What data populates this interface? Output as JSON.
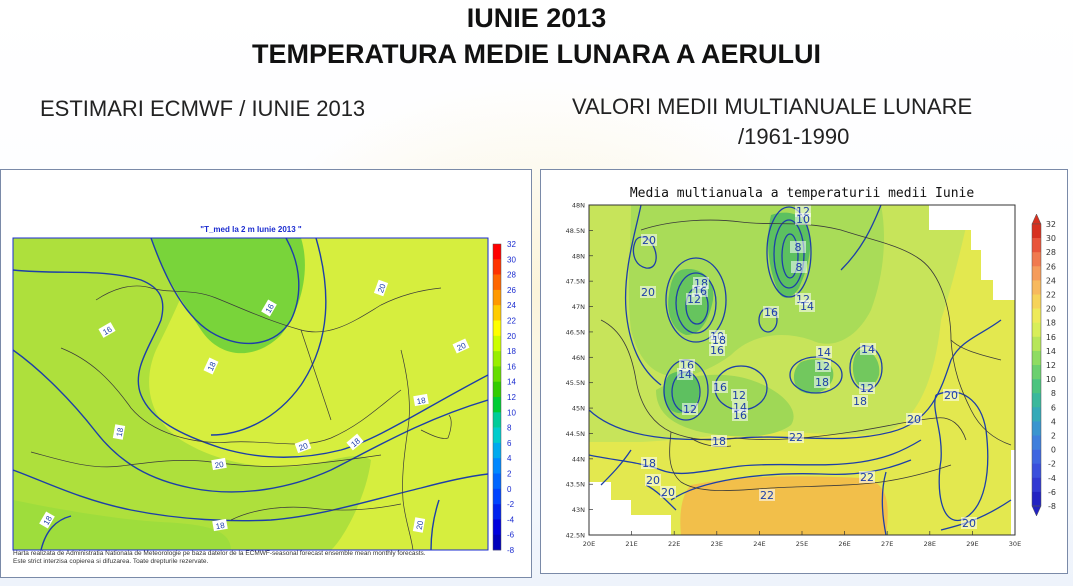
{
  "header": {
    "title_line1": "IUNIE 2013",
    "title_line2": "TEMPERATURA MEDIE LUNARA A AERULUI",
    "left_subtitle": "ESTIMARI ECMWF / IUNIE 2013",
    "right_subtitle_line1": "VALORI MEDII MULTIANUALE LUNARE",
    "right_subtitle_line2": "/1961-1990"
  },
  "left_map": {
    "title": "\"T_med la 2 m Iunie 2013 \"",
    "footnote_line1": "Harta realizata de Administratia Nationala de Meteorologie pe baza datelor de la ECMWF-seasonal forecast ensemble mean monthly forecasts.",
    "footnote_line2": "Este strict interzisa copierea si difuzarea. Toate drepturile rezervate.",
    "contour_labels": [
      "16",
      "18",
      "18",
      "20",
      "18",
      "18",
      "16",
      "20",
      "20",
      "18",
      "20",
      "18",
      "20"
    ],
    "colorbar": {
      "labels": [
        "32",
        "30",
        "28",
        "26",
        "24",
        "22",
        "20",
        "18",
        "16",
        "14",
        "12",
        "10",
        "8",
        "6",
        "4",
        "2",
        "0",
        "-2",
        "-4",
        "-6",
        "-8"
      ],
      "colors": [
        "#ff0000",
        "#ff3300",
        "#ff6600",
        "#ff9900",
        "#ffcc00",
        "#ffff00",
        "#ccff00",
        "#99ee00",
        "#66dd00",
        "#33cc00",
        "#00cc33",
        "#00cc99",
        "#00cccc",
        "#00aaee",
        "#0088ff",
        "#0066ff",
        "#0044ff",
        "#0022ee",
        "#0000dd",
        "#0000bb"
      ]
    }
  },
  "right_map": {
    "title": "Media multianuala a temperaturii medii Iunie",
    "lat_labels": [
      "48N",
      "48.5N",
      "48N",
      "47.5N",
      "47N",
      "46.5N",
      "46N",
      "45.5N",
      "45N",
      "44.5N",
      "44N",
      "43.5N",
      "43N",
      "42.5N"
    ],
    "lon_labels": [
      "20E",
      "21E",
      "22E",
      "23E",
      "24E",
      "25E",
      "26E",
      "27E",
      "28E",
      "29E",
      "30E"
    ],
    "contour_labels": [
      "12",
      "10",
      "8",
      "8",
      "12",
      "14",
      "20",
      "18",
      "16",
      "12",
      "10",
      "16",
      "20",
      "18",
      "16",
      "14",
      "12",
      "16",
      "14",
      "12",
      "18",
      "14",
      "12",
      "18",
      "16",
      "12",
      "14",
      "16",
      "18",
      "22",
      "20",
      "20",
      "20",
      "18",
      "20",
      "22",
      "22",
      "20"
    ],
    "colorbar": {
      "labels": [
        "32",
        "30",
        "28",
        "26",
        "24",
        "22",
        "20",
        "18",
        "16",
        "14",
        "12",
        "10",
        "8",
        "6",
        "4",
        "2",
        "0",
        "-2",
        "-4",
        "-6",
        "-8"
      ],
      "colors": [
        "#d7301f",
        "#e8543a",
        "#f07a4f",
        "#f59c5b",
        "#f7b95e",
        "#f6d35a",
        "#eeea5a",
        "#d8ee5a",
        "#b7e65a",
        "#8fdc62",
        "#6bd06f",
        "#4cc47f",
        "#3bb89c",
        "#35aab8",
        "#3a95cf",
        "#3f7fdc",
        "#3f66e0",
        "#3a4fdc",
        "#3138d2",
        "#2222c2"
      ]
    }
  },
  "colors": {
    "contour": "#1d3fa8",
    "border": "#333333",
    "left_green": "#8fdc3c",
    "left_yellow": "#d6ee3e",
    "right_yellow": "#e3e84f",
    "right_green": "#a8dc5a",
    "right_orange": "#f2bf4a"
  }
}
